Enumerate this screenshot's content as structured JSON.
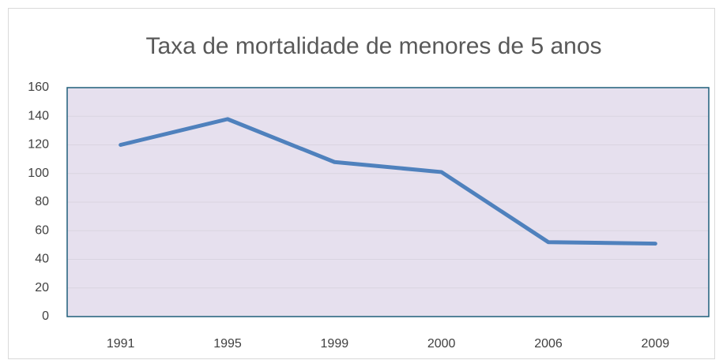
{
  "chart_data": {
    "type": "line",
    "title": "Taxa de mortalidade de menores de 5 anos",
    "categories": [
      "1991",
      "1995",
      "1999",
      "2000",
      "2006",
      "2009"
    ],
    "series": [
      {
        "color": "#4f81bd",
        "values": [
          120,
          138,
          108,
          101,
          52,
          51
        ]
      }
    ],
    "ylim": [
      0,
      160
    ],
    "yticks": [
      0,
      20,
      40,
      60,
      80,
      100,
      120,
      140,
      160
    ],
    "grid": true
  }
}
